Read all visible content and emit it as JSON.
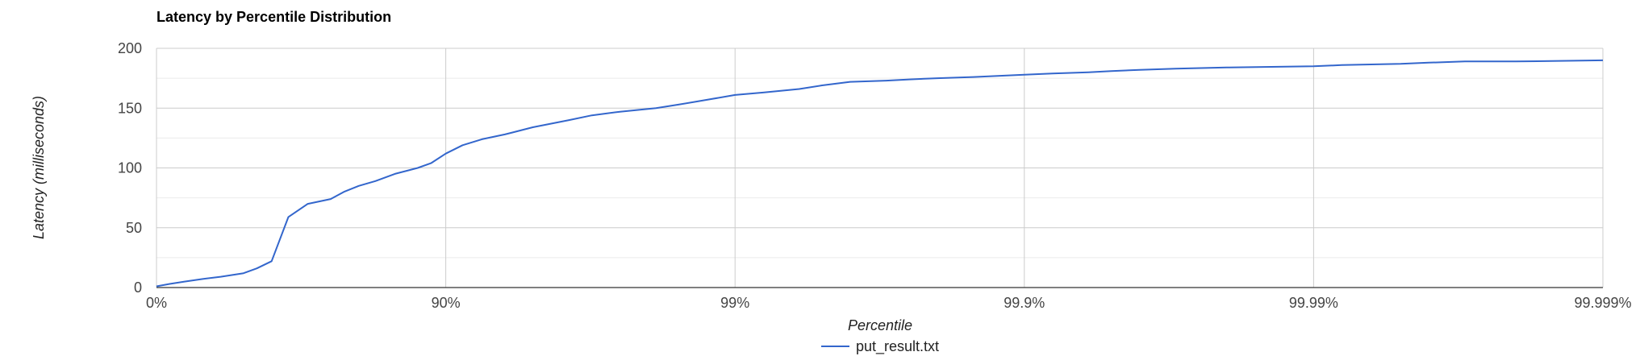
{
  "chart_data": {
    "type": "line",
    "title": "Latency by Percentile Distribution",
    "xlabel": "Percentile",
    "ylabel": "Latency (milliseconds)",
    "x_scale": "log-inverse-percentile",
    "x_ticks": [
      "0%",
      "90%",
      "99%",
      "99.9%",
      "99.99%",
      "99.999%"
    ],
    "x_tick_values": [
      0,
      90,
      99,
      99.9,
      99.99,
      99.999
    ],
    "y_ticks": [
      "0",
      "50",
      "100",
      "150",
      "200"
    ],
    "y_tick_values": [
      0,
      50,
      100,
      150,
      200
    ],
    "ylim": [
      0,
      200
    ],
    "grid": true,
    "legend_position": "bottom",
    "series": [
      {
        "name": "put_result.txt",
        "color": "#3366cc",
        "x": [
          0,
          10,
          20,
          30,
          40,
          50,
          55,
          60,
          65,
          70,
          75,
          77.5,
          80,
          82.5,
          85,
          87.5,
          88.75,
          90,
          91.25,
          92.5,
          93.75,
          95,
          96.25,
          96.875,
          97.5,
          98.125,
          98.4375,
          98.75,
          99,
          99.2,
          99.4,
          99.5,
          99.6,
          99.7,
          99.75,
          99.8,
          99.85,
          99.9,
          99.92,
          99.94,
          99.95,
          99.96,
          99.97,
          99.98,
          99.99,
          99.992,
          99.995,
          99.996,
          99.997,
          99.998,
          99.999
        ],
        "y": [
          1,
          3,
          5,
          7,
          9,
          12,
          16,
          22,
          59,
          70,
          74,
          80,
          85,
          89,
          95,
          100,
          104,
          112,
          119,
          124,
          128,
          134,
          140,
          144,
          147,
          150,
          153,
          157,
          161,
          163,
          166,
          169,
          172,
          173,
          174,
          175,
          176,
          178,
          179,
          180,
          181,
          182,
          183,
          184,
          185,
          186,
          187,
          188,
          189,
          189,
          190
        ]
      }
    ]
  }
}
